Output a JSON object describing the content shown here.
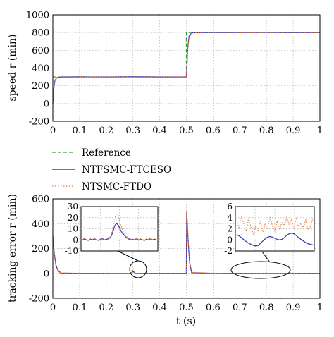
{
  "legend": {
    "entries": [
      {
        "name": "Reference",
        "color": "#3a9a3a",
        "style": "dashed"
      },
      {
        "name": "NTFSMC-FTCESO",
        "color": "#3c3cb4",
        "style": "solid"
      },
      {
        "name": "NTSMC-FTDO",
        "color": "#e87a3c",
        "style": "dotted"
      }
    ]
  },
  "chart_data": [
    {
      "type": "line",
      "ylabel": "speed r (min)",
      "xlabel": "",
      "xlim": [
        0,
        1
      ],
      "ylim": [
        -200,
        1000
      ],
      "xticks": [
        "0",
        "0.1",
        "0.2",
        "0.3",
        "0.4",
        "0.5",
        "0.6",
        "0.7",
        "0.8",
        "0.9",
        "1"
      ],
      "yticks": [
        "-200",
        "0",
        "200",
        "400",
        "600",
        "800",
        "1000"
      ],
      "grid": true,
      "series": [
        {
          "name": "Reference",
          "x": [
            0,
            0.5,
            0.5,
            1.0
          ],
          "y": [
            300,
            300,
            800,
            800
          ]
        },
        {
          "name": "NTFSMC-FTCESO",
          "x": [
            0,
            0.004,
            0.008,
            0.015,
            0.03,
            0.1,
            0.2,
            0.3,
            0.4,
            0.5,
            0.502,
            0.505,
            0.51,
            0.52,
            0.6,
            0.7,
            0.8,
            0.9,
            1.0
          ],
          "y": [
            0,
            180,
            260,
            292,
            300,
            301,
            300,
            302,
            300,
            300,
            420,
            620,
            760,
            798,
            801,
            800,
            801,
            800,
            800
          ]
        },
        {
          "name": "NTSMC-FTDO",
          "x": [
            0,
            0.004,
            0.008,
            0.015,
            0.03,
            0.1,
            0.2,
            0.3,
            0.4,
            0.5,
            0.502,
            0.505,
            0.51,
            0.52,
            0.6,
            0.7,
            0.8,
            0.9,
            1.0
          ],
          "y": [
            0,
            170,
            250,
            290,
            300,
            302,
            299,
            303,
            301,
            300,
            410,
            610,
            750,
            796,
            802,
            799,
            802,
            799,
            800
          ]
        }
      ]
    },
    {
      "type": "line",
      "ylabel": "tracking error r (min)",
      "xlabel": "t (s)",
      "xlim": [
        0,
        1
      ],
      "ylim": [
        -200,
        600
      ],
      "xticks": [
        "0",
        "0.1",
        "0.2",
        "0.3",
        "0.4",
        "0.5",
        "0.6",
        "0.7",
        "0.8",
        "0.9",
        "1"
      ],
      "yticks": [
        "-200",
        "0",
        "200",
        "400",
        "600"
      ],
      "grid": true,
      "series": [
        {
          "name": "NTFSMC-FTCESO",
          "x": [
            0,
            0.002,
            0.006,
            0.012,
            0.02,
            0.03,
            0.1,
            0.29,
            0.3,
            0.31,
            0.5,
            0.501,
            0.503,
            0.507,
            0.512,
            0.52,
            0.6,
            1.0
          ],
          "y": [
            300,
            250,
            150,
            60,
            20,
            2,
            0,
            0,
            15,
            0,
            0,
            500,
            420,
            250,
            90,
            5,
            0,
            0
          ]
        },
        {
          "name": "NTSMC-FTDO",
          "x": [
            0,
            0.002,
            0.006,
            0.012,
            0.02,
            0.03,
            0.1,
            0.29,
            0.3,
            0.31,
            0.5,
            0.501,
            0.503,
            0.507,
            0.512,
            0.52,
            0.6,
            1.0
          ],
          "y": [
            300,
            260,
            160,
            70,
            25,
            4,
            1,
            0,
            25,
            0,
            0,
            500,
            430,
            260,
            100,
            8,
            1,
            0
          ]
        }
      ],
      "insets": [
        {
          "yticks": [
            "30",
            "20",
            "10",
            "0",
            "-10"
          ],
          "ylim": [
            -10,
            30
          ],
          "series": [
            {
              "name": "NTFSMC-FTCESO",
              "y": [
                0,
                1,
                0,
                -0.5,
                0.5,
                0,
                1,
                0,
                -0.5,
                0.5,
                1,
                0,
                0.5,
                1,
                2,
                6,
                12,
                15,
                13,
                9,
                6,
                4,
                2,
                1,
                0,
                0.5,
                0,
                1,
                0,
                0.5,
                0,
                -0.5,
                0.5,
                0,
                1,
                0,
                0.5,
                0
              ]
            },
            {
              "name": "NTSMC-FTDO",
              "y": [
                0,
                1.5,
                0,
                -0.5,
                1,
                0,
                1.5,
                0,
                -0.5,
                1,
                1.5,
                0,
                1,
                2,
                3,
                9,
                18,
                24,
                22,
                14,
                9,
                5,
                3,
                2,
                0.5,
                1,
                0,
                1.5,
                0,
                1,
                0,
                -0.5,
                1,
                0,
                1.5,
                0,
                1,
                0
              ]
            }
          ]
        },
        {
          "yticks": [
            "6",
            "4",
            "2",
            "0",
            "-2"
          ],
          "ylim": [
            -2,
            6
          ],
          "series": [
            {
              "name": "NTFSMC-FTCESO",
              "y": [
                1.0,
                0.7,
                0.4,
                0.0,
                -0.3,
                -0.6,
                -0.8,
                -1.0,
                -1.1,
                -1.0,
                -0.6,
                -0.2,
                0.2,
                0.5,
                0.6,
                0.5,
                0.3,
                0.1,
                0.0,
                0.1,
                0.4,
                0.8,
                1.1,
                1.2,
                1.1,
                0.8,
                0.4,
                0.1,
                -0.2,
                -0.5,
                -0.7,
                -0.8,
                -0.9
              ]
            },
            {
              "name": "NTSMC-FTDO",
              "y": [
                3.5,
                2.0,
                4.2,
                2.8,
                1.6,
                3.9,
                2.2,
                1.1,
                2.6,
                1.7,
                3.3,
                1.4,
                3.0,
                2.1,
                4.1,
                2.5,
                1.6,
                3.4,
                2.0,
                3.1,
                2.6,
                4.0,
                2.8,
                3.6,
                2.1,
                3.8,
                2.4,
                3.0,
                2.2,
                3.6,
                1.8,
                2.4,
                3.9
              ]
            }
          ]
        }
      ]
    }
  ]
}
